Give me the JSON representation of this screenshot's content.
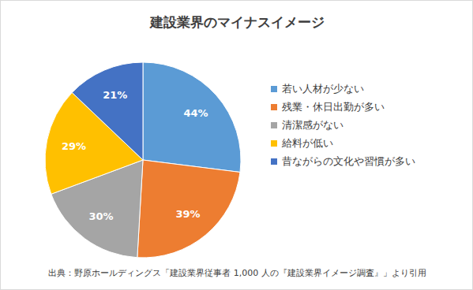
{
  "chart_data": {
    "type": "pie",
    "title": "建設業界のマイナスイメージ",
    "categories": [
      "若い人材が少ない",
      "残業・休日出勤が多い",
      "清潔感がない",
      "給料が低い",
      "昔ながらの文化や習慣が多い"
    ],
    "values": [
      44,
      39,
      30,
      29,
      21
    ],
    "value_labels": [
      "44%",
      "39%",
      "30%",
      "29%",
      "21%"
    ],
    "colors": [
      "#5b9bd5",
      "#ed7d31",
      "#a5a5a5",
      "#ffc000",
      "#4472c4"
    ],
    "data_labels": true,
    "legend": "right",
    "annotations": [
      "出典：野原ホールディングス「建設業界従事者 1,000 人の『建設業界イメージ調査』」より引用"
    ]
  }
}
